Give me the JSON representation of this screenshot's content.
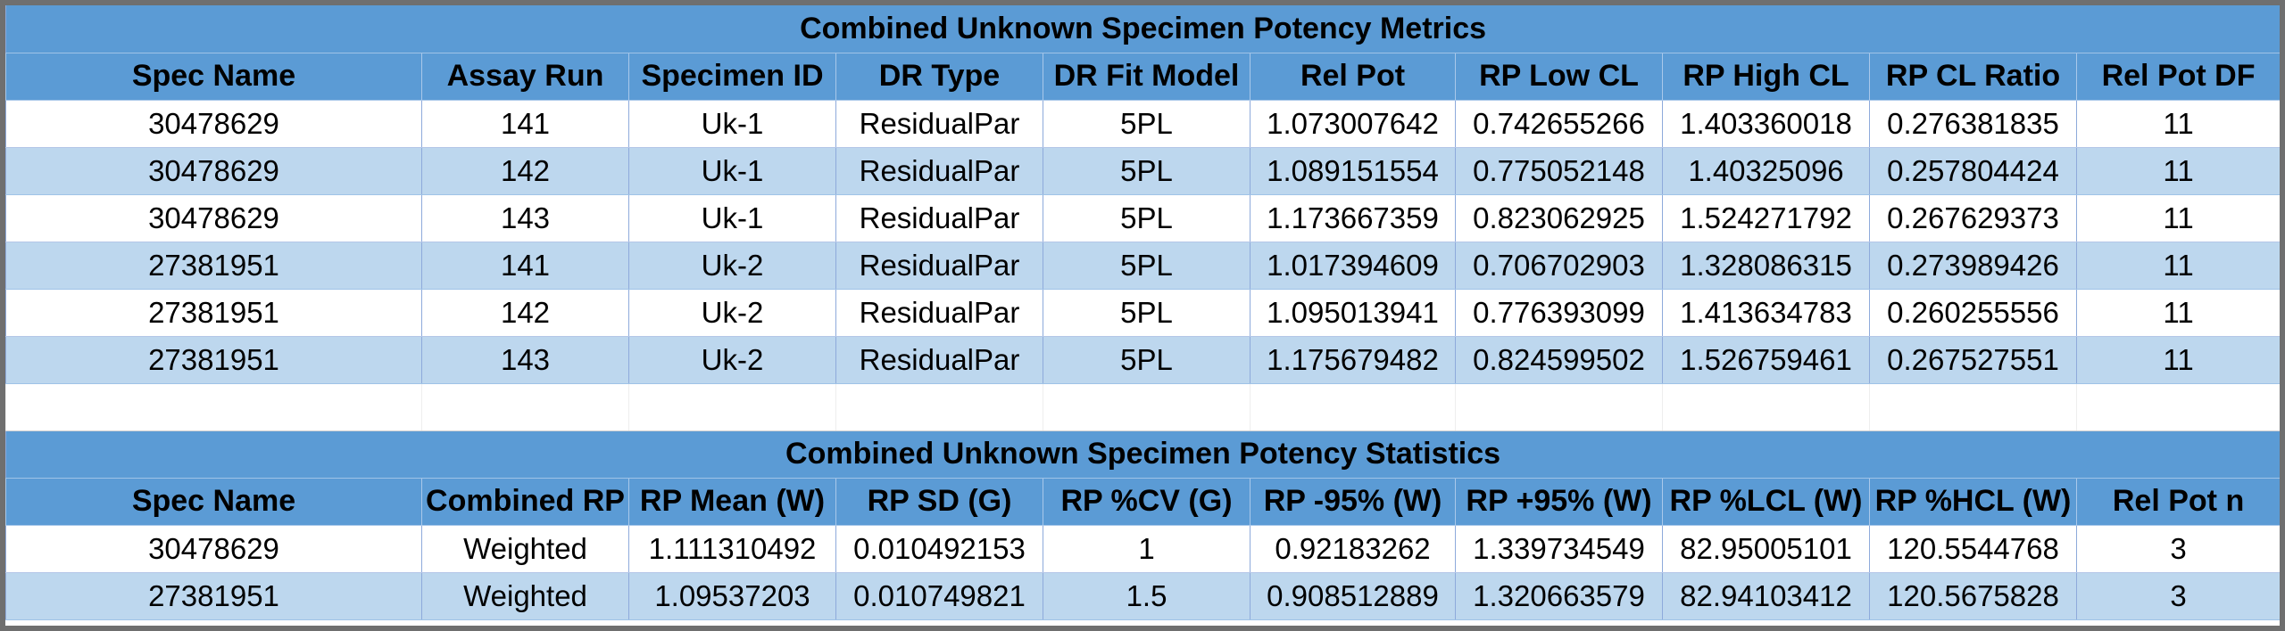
{
  "metrics": {
    "title": "Combined Unknown Specimen Potency Metrics",
    "headers": [
      "Spec Name",
      "Assay Run",
      "Specimen ID",
      "DR Type",
      "DR Fit Model",
      "Rel Pot",
      "RP Low CL",
      "RP High CL",
      "RP CL Ratio",
      "Rel Pot DF"
    ],
    "rows": [
      [
        "30478629",
        "141",
        "Uk-1",
        "ResidualPar",
        "5PL",
        "1.073007642",
        "0.742655266",
        "1.403360018",
        "0.276381835",
        "11"
      ],
      [
        "30478629",
        "142",
        "Uk-1",
        "ResidualPar",
        "5PL",
        "1.089151554",
        "0.775052148",
        "1.40325096",
        "0.257804424",
        "11"
      ],
      [
        "30478629",
        "143",
        "Uk-1",
        "ResidualPar",
        "5PL",
        "1.173667359",
        "0.823062925",
        "1.524271792",
        "0.267629373",
        "11"
      ],
      [
        "27381951",
        "141",
        "Uk-2",
        "ResidualPar",
        "5PL",
        "1.017394609",
        "0.706702903",
        "1.328086315",
        "0.273989426",
        "11"
      ],
      [
        "27381951",
        "142",
        "Uk-2",
        "ResidualPar",
        "5PL",
        "1.095013941",
        "0.776393099",
        "1.413634783",
        "0.260255556",
        "11"
      ],
      [
        "27381951",
        "143",
        "Uk-2",
        "ResidualPar",
        "5PL",
        "1.175679482",
        "0.824599502",
        "1.526759461",
        "0.267527551",
        "11"
      ]
    ]
  },
  "statistics": {
    "title": "Combined Unknown Specimen Potency Statistics",
    "headers": [
      "Spec Name",
      "Combined RP",
      "RP Mean (W)",
      "RP SD (G)",
      "RP %CV (G)",
      "RP -95% (W)",
      "RP +95% (W)",
      "RP %LCL (W)",
      "RP %HCL (W)",
      "Rel Pot n"
    ],
    "rows": [
      [
        "30478629",
        "Weighted",
        "1.111310492",
        "0.010492153",
        "1",
        "0.92183262",
        "1.339734549",
        "82.95005101",
        "120.5544768",
        "3"
      ],
      [
        "27381951",
        "Weighted",
        "1.09537203",
        "0.010749821",
        "1.5",
        "0.908512889",
        "1.320663579",
        "82.94103412",
        "120.5675828",
        "3"
      ]
    ]
  },
  "colors": {
    "header_fill": "#5b9bd5",
    "band_fill": "#bdd7ee",
    "row_fill": "#ffffff",
    "frame": "#6f6f6f"
  }
}
